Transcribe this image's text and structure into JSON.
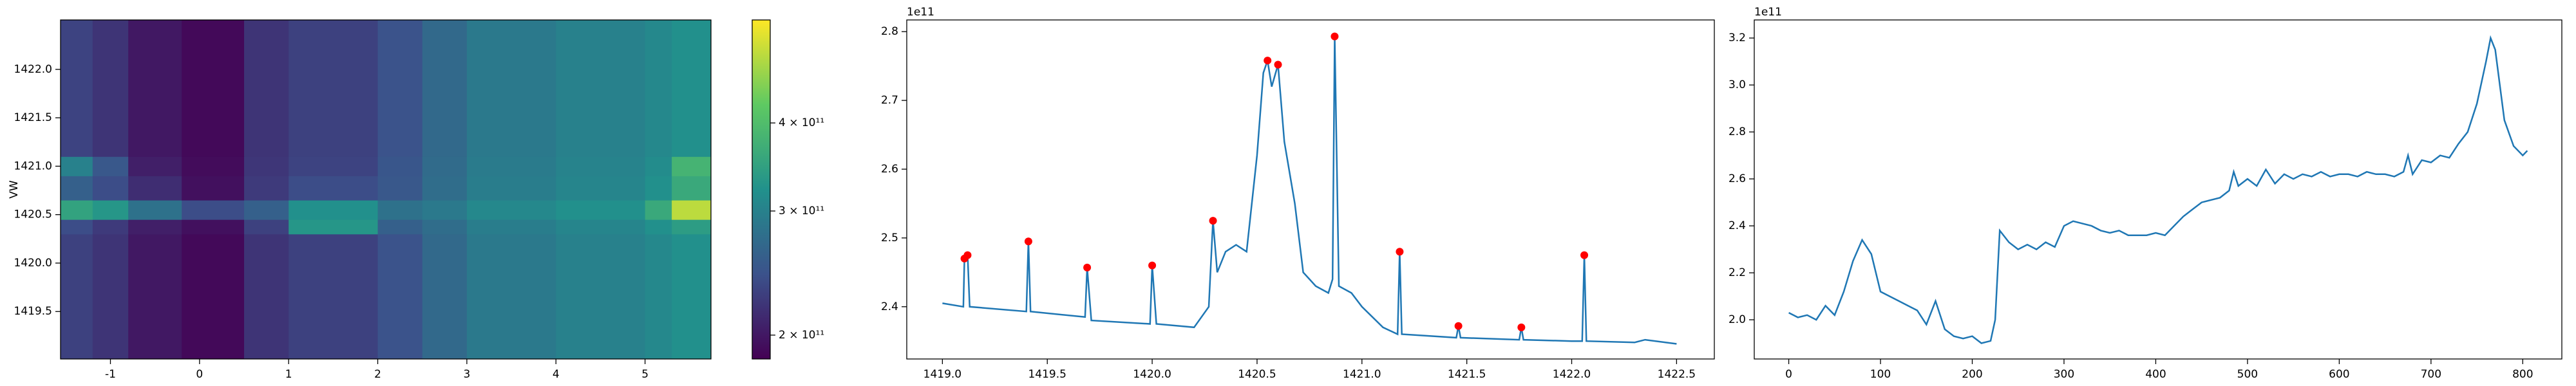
{
  "chart_data": [
    {
      "type": "heatmap",
      "ylabel": "VW",
      "x_edges": [
        -1.56,
        -1.2,
        -0.8,
        -0.2,
        0.5,
        1.0,
        2.0,
        2.5,
        3.0,
        4.0,
        5.0,
        5.3,
        5.74
      ],
      "y_edges": [
        1419.01,
        1420.3,
        1420.45,
        1420.65,
        1420.9,
        1421.1,
        1422.51
      ],
      "z": [
        [
          230000000000,
          220000000000,
          200000000000,
          190000000000,
          220000000000,
          230000000000,
          245000000000,
          270000000000,
          290000000000,
          300000000000,
          310000000000,
          320000000000
        ],
        [
          240000000000,
          225000000000,
          205000000000,
          195000000000,
          230000000000,
          330000000000,
          260000000000,
          275000000000,
          295000000000,
          305000000000,
          320000000000,
          340000000000
        ],
        [
          350000000000,
          330000000000,
          280000000000,
          240000000000,
          260000000000,
          320000000000,
          280000000000,
          290000000000,
          310000000000,
          320000000000,
          360000000000,
          500000000000
        ],
        [
          260000000000,
          240000000000,
          215000000000,
          195000000000,
          225000000000,
          240000000000,
          250000000000,
          275000000000,
          295000000000,
          305000000000,
          320000000000,
          360000000000
        ],
        [
          300000000000,
          250000000000,
          205000000000,
          192000000000,
          222000000000,
          232000000000,
          248000000000,
          272000000000,
          292000000000,
          302000000000,
          315000000000,
          380000000000
        ],
        [
          232000000000,
          220000000000,
          200000000000,
          190000000000,
          220000000000,
          230000000000,
          245000000000,
          270000000000,
          290000000000,
          300000000000,
          310000000000,
          320000000000
        ]
      ],
      "xlim": [
        -1.56,
        5.74
      ],
      "ylim": [
        1419.01,
        1422.51
      ],
      "xticks": [
        -1,
        0,
        1,
        2,
        3,
        4,
        5
      ],
      "yticks": [
        1419.5,
        {
          "value": 1420,
          "label": "1420.0"
        },
        1420.5,
        {
          "value": 1421,
          "label": "1421.0"
        },
        1421.5,
        {
          "value": 1422,
          "label": "1422.0"
        }
      ],
      "colormap": "viridis",
      "color_log": true,
      "clim": [
        185000000000,
        560000000000
      ],
      "cticks": [
        {
          "value": 200000000000,
          "label": "2 × 10¹¹"
        },
        {
          "value": 300000000000,
          "label": "3 × 10¹¹"
        },
        {
          "value": 400000000000,
          "label": "4 × 10¹¹"
        }
      ]
    },
    {
      "type": "line",
      "offset_text": "1e11",
      "series": [
        {
          "color": "#1f77b4",
          "x": [
            1419.0,
            1419.1,
            1419.105,
            1419.12,
            1419.13,
            1419.4,
            1419.41,
            1419.42,
            1419.68,
            1419.69,
            1419.71,
            1419.99,
            1420.0,
            1420.02,
            1420.2,
            1420.27,
            1420.29,
            1420.31,
            1420.35,
            1420.4,
            1420.45,
            1420.5,
            1420.53,
            1420.55,
            1420.57,
            1420.6,
            1420.63,
            1420.68,
            1420.72,
            1420.78,
            1420.84,
            1420.86,
            1420.87,
            1420.89,
            1420.95,
            1421.0,
            1421.1,
            1421.17,
            1421.18,
            1421.19,
            1421.3,
            1421.45,
            1421.46,
            1421.47,
            1421.75,
            1421.76,
            1421.77,
            1422.0,
            1422.05,
            1422.06,
            1422.07,
            1422.3,
            1422.35,
            1422.5
          ],
          "values": [
            2.405,
            2.4,
            2.47,
            2.475,
            2.4,
            2.393,
            2.495,
            2.393,
            2.385,
            2.457,
            2.38,
            2.375,
            2.46,
            2.375,
            2.37,
            2.4,
            2.525,
            2.45,
            2.48,
            2.49,
            2.48,
            2.62,
            2.74,
            2.758,
            2.72,
            2.752,
            2.64,
            2.55,
            2.45,
            2.43,
            2.42,
            2.44,
            2.793,
            2.43,
            2.42,
            2.4,
            2.37,
            2.36,
            2.48,
            2.36,
            2.358,
            2.355,
            2.372,
            2.355,
            2.352,
            2.37,
            2.352,
            2.35,
            2.35,
            2.475,
            2.35,
            2.348,
            2.352,
            2.346
          ]
        }
      ],
      "peaks": {
        "color": "#ff0000",
        "x": [
          1419.105,
          1419.12,
          1419.41,
          1419.69,
          1420.0,
          1420.29,
          1420.55,
          1420.6,
          1420.87,
          1421.18,
          1421.46,
          1421.76,
          1422.06
        ],
        "values": [
          2.47,
          2.475,
          2.495,
          2.457,
          2.46,
          2.525,
          2.758,
          2.752,
          2.793,
          2.48,
          2.372,
          2.37,
          2.475
        ]
      },
      "xlim": [
        1418.83,
        1422.68
      ],
      "ylim": [
        2.324,
        2.817
      ],
      "xticks": [
        {
          "value": 1419,
          "label": "1419.0"
        },
        1419.5,
        {
          "value": 1420,
          "label": "1420.0"
        },
        1420.5,
        {
          "value": 1421,
          "label": "1421.0"
        },
        1421.5,
        {
          "value": 1422,
          "label": "1422.0"
        },
        1422.5
      ],
      "yticks": [
        2.4,
        2.5,
        2.6,
        2.7,
        2.8
      ]
    },
    {
      "type": "line",
      "offset_text": "1e11",
      "series": [
        {
          "color": "#1f77b4",
          "x": [
            0,
            10,
            20,
            30,
            40,
            50,
            60,
            70,
            80,
            90,
            100,
            110,
            120,
            130,
            140,
            150,
            160,
            170,
            180,
            190,
            200,
            210,
            220,
            225,
            230,
            240,
            250,
            260,
            270,
            280,
            290,
            300,
            310,
            320,
            330,
            340,
            350,
            360,
            370,
            380,
            390,
            400,
            410,
            420,
            430,
            440,
            450,
            460,
            470,
            480,
            485,
            490,
            500,
            510,
            520,
            530,
            540,
            550,
            560,
            570,
            580,
            590,
            600,
            610,
            620,
            630,
            640,
            650,
            660,
            670,
            675,
            680,
            690,
            700,
            710,
            720,
            730,
            740,
            750,
            760,
            765,
            770,
            775,
            780,
            790,
            800,
            805
          ],
          "values": [
            2.03,
            2.01,
            2.02,
            2.0,
            2.06,
            2.02,
            2.12,
            2.25,
            2.34,
            2.28,
            2.12,
            2.1,
            2.08,
            2.06,
            2.04,
            1.98,
            2.08,
            1.96,
            1.93,
            1.92,
            1.93,
            1.9,
            1.91,
            2.0,
            2.38,
            2.33,
            2.3,
            2.32,
            2.3,
            2.33,
            2.31,
            2.4,
            2.42,
            2.41,
            2.4,
            2.38,
            2.37,
            2.38,
            2.36,
            2.36,
            2.36,
            2.37,
            2.36,
            2.4,
            2.44,
            2.47,
            2.5,
            2.51,
            2.52,
            2.55,
            2.63,
            2.57,
            2.6,
            2.57,
            2.64,
            2.58,
            2.62,
            2.6,
            2.62,
            2.61,
            2.63,
            2.61,
            2.62,
            2.62,
            2.61,
            2.63,
            2.62,
            2.62,
            2.61,
            2.63,
            2.7,
            2.62,
            2.68,
            2.67,
            2.7,
            2.69,
            2.75,
            2.8,
            2.92,
            3.1,
            3.2,
            3.15,
            3.0,
            2.85,
            2.74,
            2.7,
            2.72
          ]
        }
      ],
      "xlim": [
        -37.6,
        842.6
      ],
      "ylim": [
        1.833,
        3.277
      ],
      "xticks": [
        0,
        100,
        200,
        300,
        400,
        500,
        600,
        700,
        800
      ],
      "yticks": [
        {
          "value": 2,
          "label": "2.0"
        },
        2.2,
        2.4,
        2.6,
        2.8,
        {
          "value": 3,
          "label": "3.0"
        },
        3.2
      ]
    }
  ]
}
